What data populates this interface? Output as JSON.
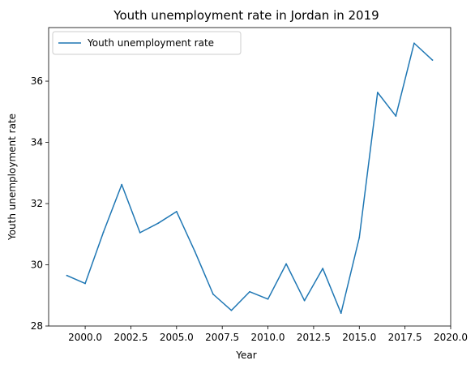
{
  "chart_data": {
    "type": "line",
    "title": "Youth unemployment rate in Jordan in 2019",
    "xlabel": "Year",
    "ylabel": "Youth unemployment rate",
    "xlim": [
      1998.0,
      2020.0
    ],
    "ylim": [
      28.0,
      37.75
    ],
    "xticks": [
      2000.0,
      2002.5,
      2005.0,
      2007.5,
      2010.0,
      2012.5,
      2015.0,
      2017.5,
      2020.0
    ],
    "xtick_labels": [
      "2000.0",
      "2002.5",
      "2005.0",
      "2007.5",
      "2010.0",
      "2012.5",
      "2015.0",
      "2017.5",
      "2020.0"
    ],
    "yticks": [
      28,
      30,
      32,
      34,
      36
    ],
    "ytick_labels": [
      "28",
      "30",
      "32",
      "34",
      "36"
    ],
    "grid": false,
    "legend_position": "upper-left",
    "series": [
      {
        "name": "Youth unemployment rate",
        "color": "#1f77b4",
        "x": [
          1999,
          2000,
          2001,
          2002,
          2003,
          2004,
          2005,
          2006,
          2007,
          2008,
          2009,
          2010,
          2011,
          2012,
          2013,
          2014,
          2015,
          2016,
          2017,
          2018,
          2019
        ],
        "y": [
          29.65,
          29.39,
          31.07,
          32.62,
          31.05,
          31.36,
          31.74,
          30.44,
          29.04,
          28.51,
          29.12,
          28.88,
          30.03,
          28.83,
          29.88,
          28.42,
          30.89,
          35.63,
          34.86,
          37.24,
          36.69
        ]
      }
    ]
  }
}
